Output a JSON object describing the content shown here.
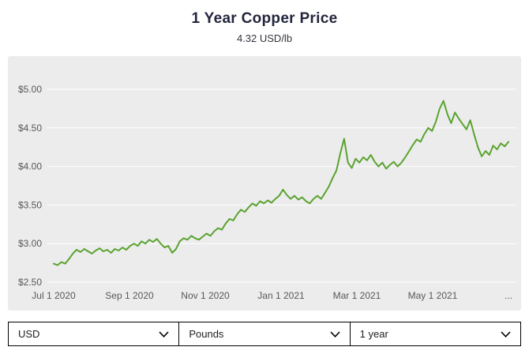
{
  "header": {
    "title": "1 Year Copper Price",
    "subtitle": "4.32 USD/lb"
  },
  "chart_data": {
    "type": "line",
    "title": "1 Year Copper Price",
    "ylabel": "USD/lb",
    "xlabel": "",
    "ylim": [
      2.5,
      5.0
    ],
    "yticks": [
      2.5,
      3.0,
      3.5,
      4.0,
      4.5,
      5.0
    ],
    "ytick_labels": [
      "$2.50",
      "$3.00",
      "$3.50",
      "$4.00",
      "$4.50",
      "$5.00"
    ],
    "xtick_labels": [
      "Jul 1 2020",
      "Sep 1 2020",
      "Nov 1 2020",
      "Jan 1 2021",
      "Mar 1 2021",
      "May 1 2021",
      "..."
    ],
    "grid": true,
    "legend_position": "none",
    "line_color": "#5aa330",
    "panel_background": "#ececec",
    "grid_color": "#ffffff",
    "current_value": 4.32,
    "values": [
      2.74,
      2.72,
      2.76,
      2.74,
      2.8,
      2.87,
      2.92,
      2.89,
      2.93,
      2.9,
      2.87,
      2.91,
      2.94,
      2.9,
      2.92,
      2.88,
      2.93,
      2.91,
      2.95,
      2.92,
      2.97,
      3.0,
      2.97,
      3.03,
      3.0,
      3.05,
      3.02,
      3.06,
      3.0,
      2.95,
      2.97,
      2.88,
      2.93,
      3.03,
      3.07,
      3.05,
      3.1,
      3.07,
      3.05,
      3.09,
      3.13,
      3.1,
      3.16,
      3.2,
      3.18,
      3.26,
      3.32,
      3.3,
      3.38,
      3.44,
      3.41,
      3.47,
      3.52,
      3.49,
      3.55,
      3.52,
      3.56,
      3.53,
      3.58,
      3.62,
      3.7,
      3.63,
      3.58,
      3.62,
      3.57,
      3.6,
      3.55,
      3.52,
      3.58,
      3.62,
      3.58,
      3.66,
      3.74,
      3.85,
      3.95,
      4.17,
      4.36,
      4.05,
      3.98,
      4.1,
      4.05,
      4.12,
      4.08,
      4.15,
      4.06,
      4.0,
      4.05,
      3.97,
      4.02,
      4.06,
      4.0,
      4.05,
      4.12,
      4.2,
      4.28,
      4.35,
      4.32,
      4.42,
      4.5,
      4.46,
      4.58,
      4.75,
      4.85,
      4.68,
      4.56,
      4.7,
      4.62,
      4.55,
      4.48,
      4.6,
      4.42,
      4.25,
      4.13,
      4.2,
      4.15,
      4.27,
      4.22,
      4.3,
      4.26,
      4.32
    ]
  },
  "controls": {
    "currency": {
      "value": "USD"
    },
    "unit": {
      "value": "Pounds"
    },
    "period": {
      "value": "1 year"
    }
  }
}
